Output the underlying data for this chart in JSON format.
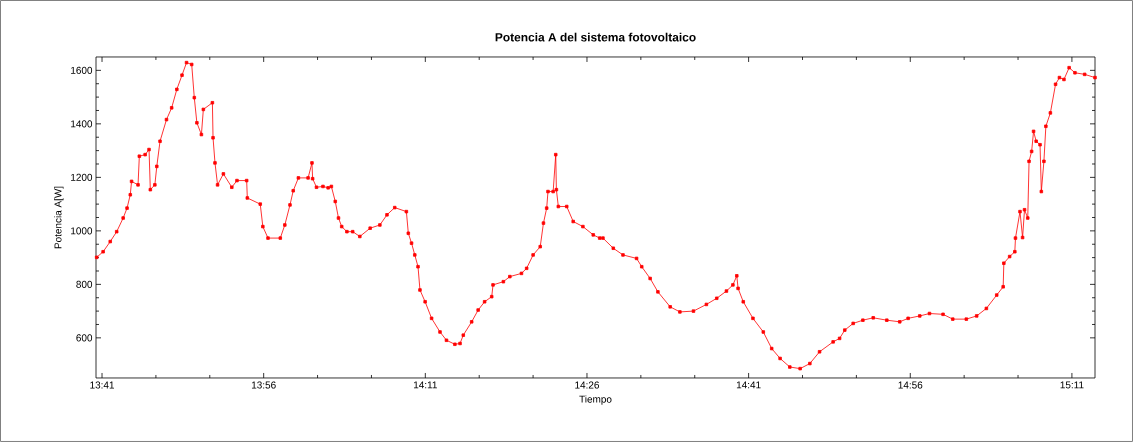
{
  "chart_data": {
    "type": "line",
    "title": "Potencia A del sistema fotovoltaico",
    "xlabel": "Tiempo",
    "ylabel": "Potencia A[W]",
    "xlim": [
      13.674,
      15.219
    ],
    "ylim": [
      450,
      1650
    ],
    "xticks": [
      {
        "value": 13.6833,
        "label": "13:41"
      },
      {
        "value": 13.9333,
        "label": "13:56"
      },
      {
        "value": 14.1833,
        "label": "14:11"
      },
      {
        "value": 14.4333,
        "label": "14:26"
      },
      {
        "value": 14.6833,
        "label": "14:41"
      },
      {
        "value": 14.9333,
        "label": "14:56"
      },
      {
        "value": 15.1833,
        "label": "15:11"
      }
    ],
    "yticks": [
      600,
      800,
      1000,
      1200,
      1400,
      1600
    ],
    "grid": false,
    "marker": "square",
    "line_style": "solid",
    "series": [
      {
        "color": "#ff0000",
        "x": [
          13.675,
          13.685,
          13.696,
          13.706,
          13.716,
          13.722,
          13.727,
          13.729,
          13.739,
          13.741,
          13.75,
          13.756,
          13.758,
          13.765,
          13.768,
          13.773,
          13.783,
          13.791,
          13.799,
          13.807,
          13.814,
          13.822,
          13.826,
          13.83,
          13.837,
          13.84,
          13.854,
          13.855,
          13.858,
          13.862,
          13.871,
          13.884,
          13.892,
          13.907,
          13.908,
          13.928,
          13.932,
          13.94,
          13.959,
          13.966,
          13.974,
          13.979,
          13.987,
          14.002,
          14.008,
          14.009,
          14.015,
          14.025,
          14.033,
          14.038,
          14.044,
          14.049,
          14.054,
          14.062,
          14.071,
          14.082,
          14.098,
          14.113,
          14.124,
          14.136,
          14.154,
          14.157,
          14.162,
          14.167,
          14.172,
          14.175,
          14.183,
          14.193,
          14.206,
          14.216,
          14.229,
          14.237,
          14.242,
          14.255,
          14.265,
          14.275,
          14.286,
          14.288,
          14.304,
          14.314,
          14.332,
          14.34,
          14.35,
          14.361,
          14.366,
          14.371,
          14.373,
          14.381,
          14.385,
          14.386,
          14.389,
          14.402,
          14.412,
          14.427,
          14.443,
          14.453,
          14.458,
          14.474,
          14.489,
          14.51,
          14.518,
          14.531,
          14.543,
          14.562,
          14.577,
          14.598,
          14.618,
          14.634,
          14.649,
          14.659,
          14.665,
          14.667,
          14.675,
          14.69,
          14.706,
          14.719,
          14.732,
          14.747,
          14.763,
          14.778,
          14.793,
          14.814,
          14.824,
          14.832,
          14.845,
          14.86,
          14.876,
          14.897,
          14.917,
          14.93,
          14.948,
          14.963,
          14.984,
          14.999,
          15.02,
          15.036,
          15.051,
          15.067,
          15.077,
          15.078,
          15.087,
          15.095,
          15.096,
          15.103,
          15.107,
          15.11,
          15.115,
          15.117,
          15.121,
          15.124,
          15.128,
          15.134,
          15.136,
          15.14,
          15.143,
          15.15,
          15.158,
          15.164,
          15.171,
          15.179,
          15.188,
          15.203,
          15.219
        ],
        "values": [
          901,
          922,
          960,
          997,
          1048,
          1085,
          1135,
          1185,
          1172,
          1279,
          1285,
          1304,
          1154,
          1172,
          1241,
          1335,
          1416,
          1460,
          1529,
          1582,
          1629,
          1622,
          1498,
          1404,
          1360,
          1454,
          1479,
          1348,
          1254,
          1172,
          1213,
          1163,
          1188,
          1188,
          1123,
          1100,
          1016,
          973,
          973,
          1022,
          1097,
          1150,
          1198,
          1198,
          1254,
          1195,
          1163,
          1166,
          1161,
          1166,
          1110,
          1048,
          1016,
          997,
          997,
          979,
          1010,
          1022,
          1060,
          1087,
          1072,
          991,
          954,
          910,
          866,
          779,
          735,
          673,
          622,
          591,
          576,
          579,
          610,
          660,
          704,
          735,
          754,
          798,
          810,
          829,
          841,
          860,
          910,
          941,
          1029,
          1085,
          1147,
          1147,
          1285,
          1154,
          1091,
          1091,
          1035,
          1016,
          985,
          973,
          973,
          935,
          910,
          897,
          866,
          822,
          772,
          716,
          697,
          700,
          725,
          748,
          775,
          798,
          832,
          785,
          735,
          673,
          622,
          560,
          523,
          491,
          485,
          504,
          548,
          585,
          598,
          629,
          654,
          666,
          675,
          666,
          660,
          673,
          682,
          691,
          688,
          670,
          670,
          682,
          710,
          760,
          791,
          879,
          904,
          922,
          973,
          1072,
          975,
          1079,
          1048,
          1260,
          1297,
          1372,
          1335,
          1322,
          1147,
          1260,
          1391,
          1441,
          1548,
          1573,
          1566,
          1610,
          1591,
          1585,
          1573
        ]
      }
    ]
  }
}
